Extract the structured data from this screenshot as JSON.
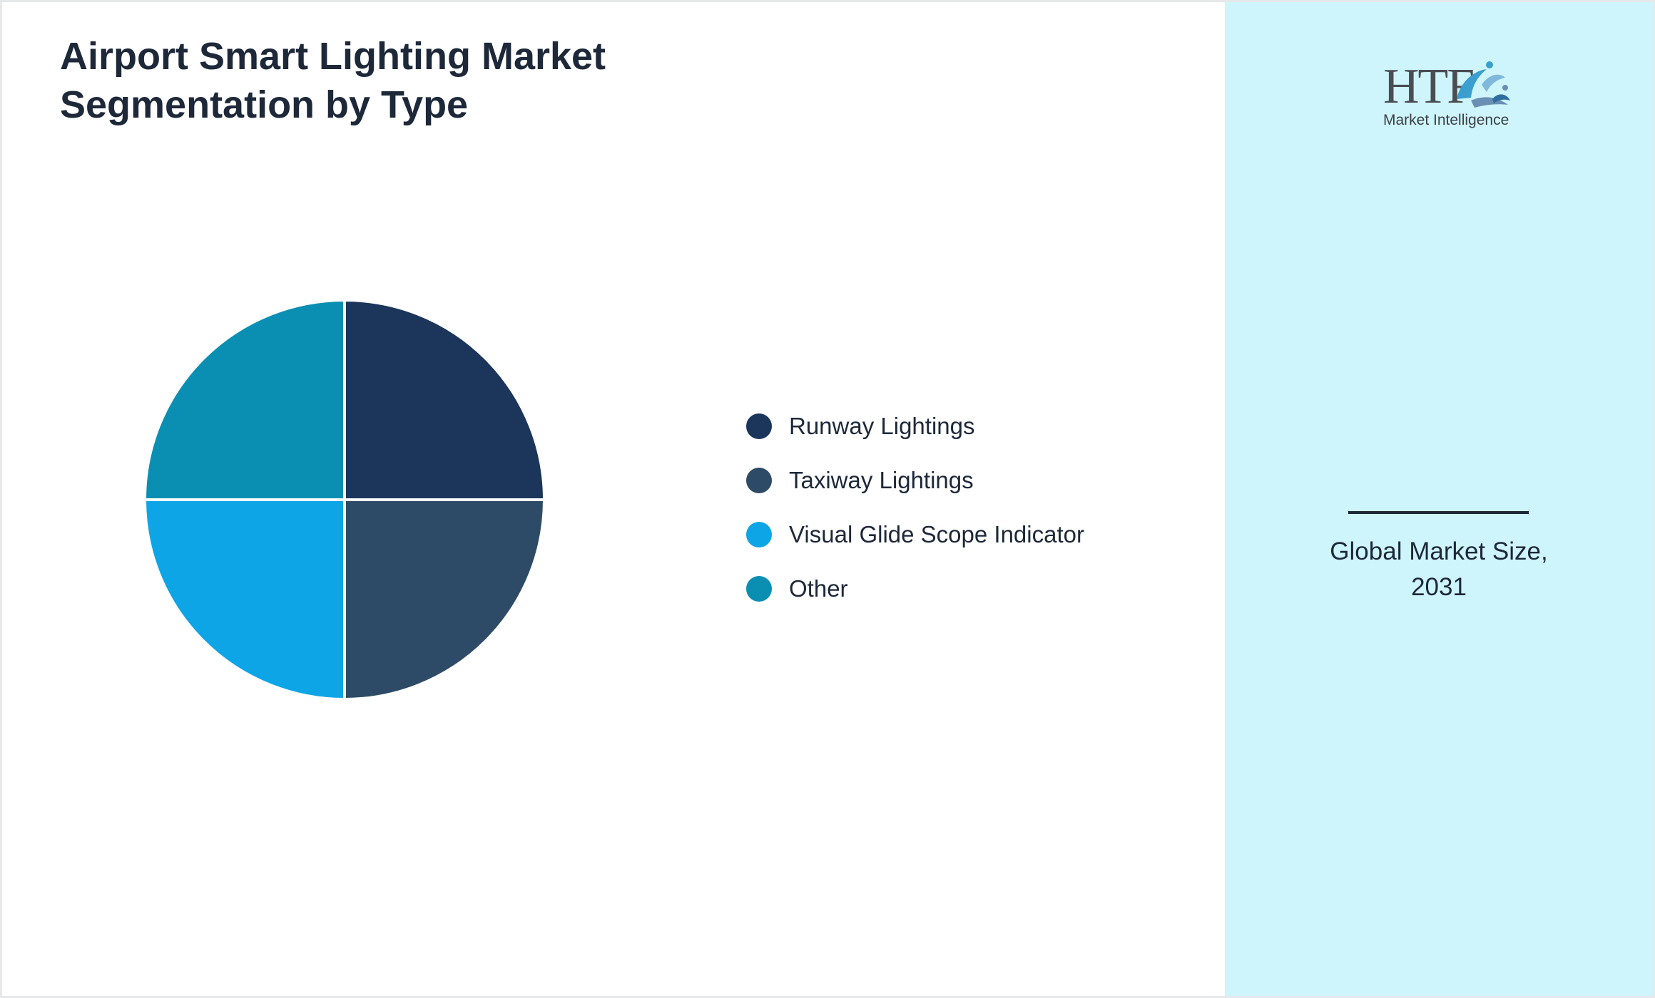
{
  "header": {
    "title_line1": "Airport Smart Lighting Market",
    "title_line2": "Segmentation by Type"
  },
  "chart_data": {
    "type": "pie",
    "title": "Airport Smart Lighting Market Segmentation by Type",
    "categories": [
      "Runway Lightings",
      "Taxiway Lightings",
      "Visual Glide Scope Indicator",
      "Other"
    ],
    "values": [
      25,
      25,
      25,
      25
    ],
    "colors": [
      "#1b355b",
      "#2d4b66",
      "#0ea5e6",
      "#0a8fb3"
    ],
    "legend_position": "right"
  },
  "sidebar": {
    "logo": {
      "letters": "HTF",
      "subtitle": "Market Intelligence",
      "icon": "swirl-logo-icon"
    },
    "stat_label_line1": "Global Market Size,",
    "stat_label_line2": "2031"
  }
}
